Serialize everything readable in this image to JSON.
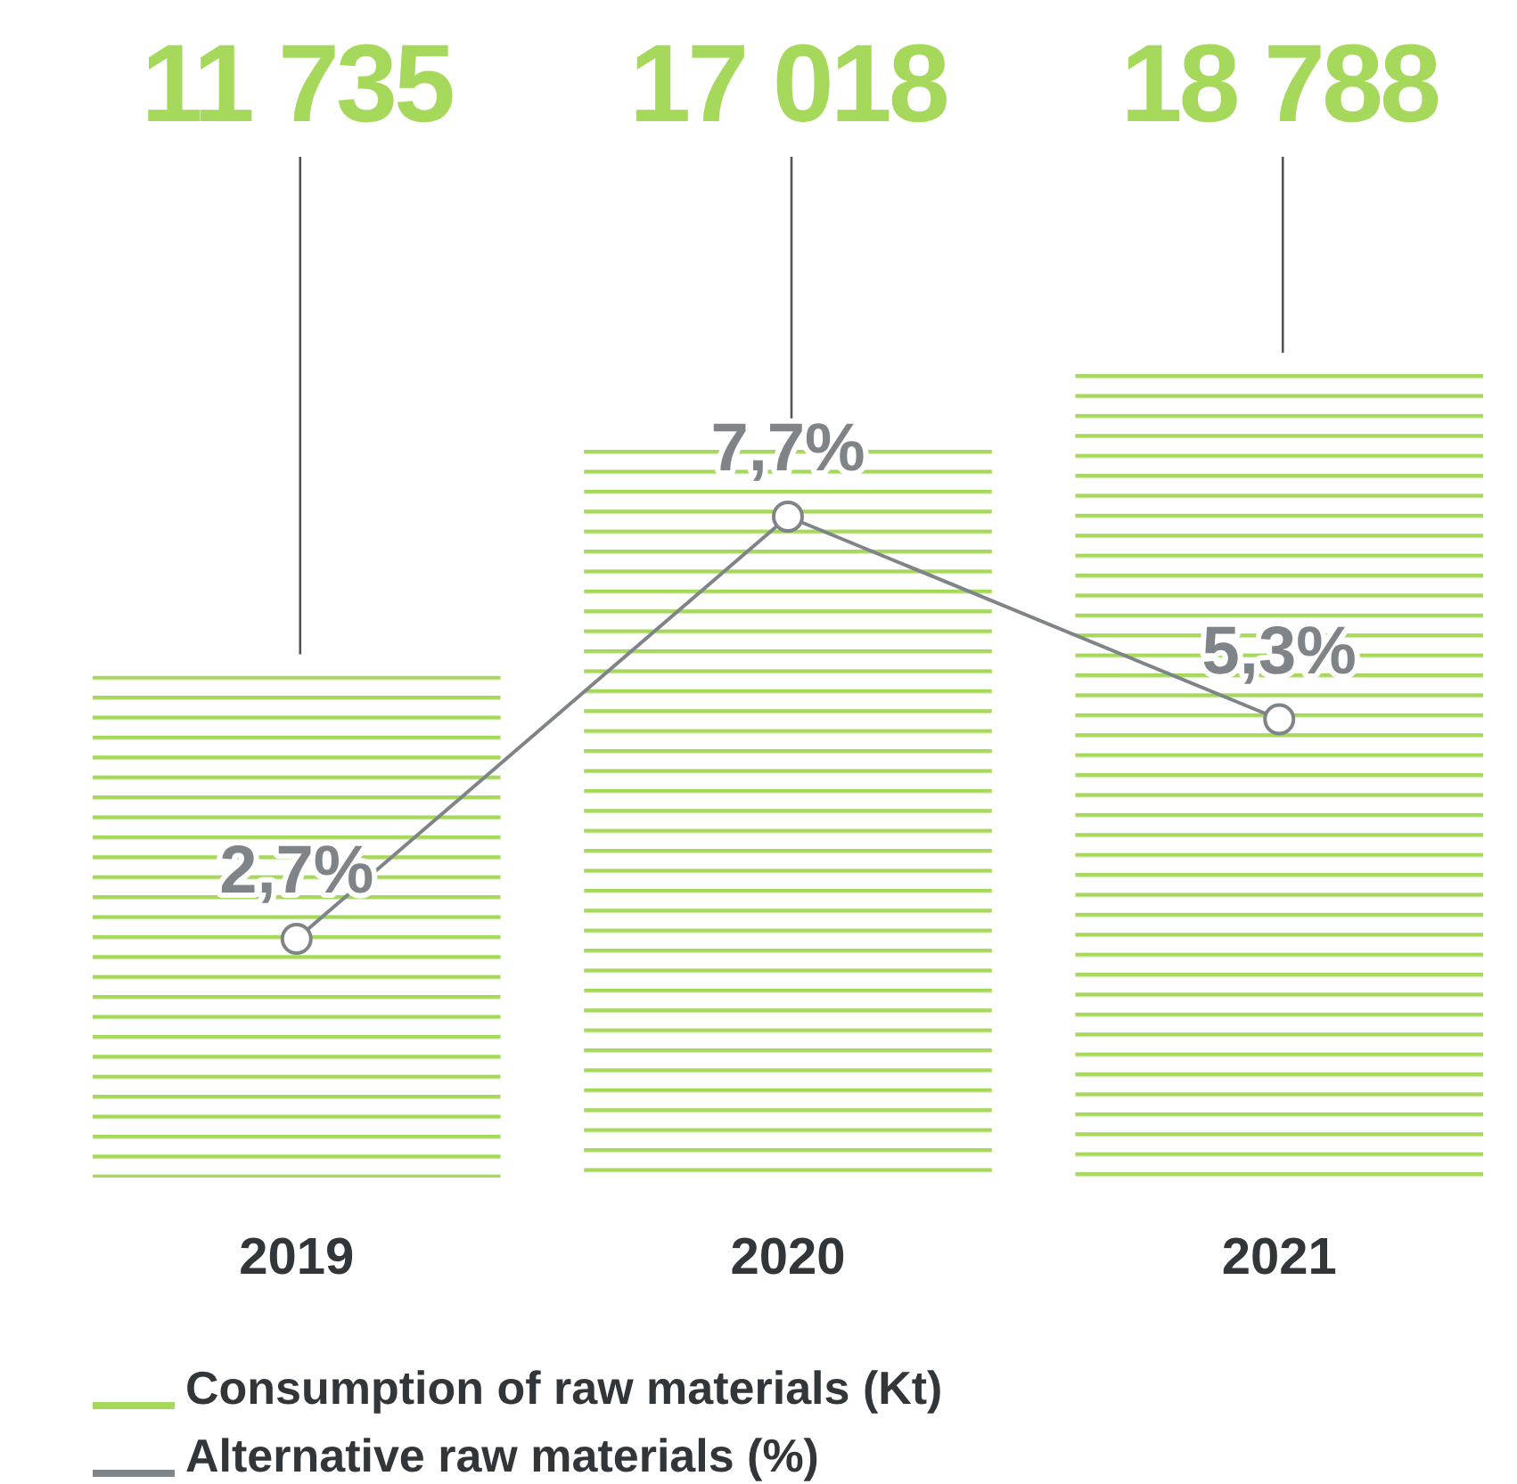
{
  "chart_data": {
    "type": "bar",
    "categories": [
      "2019",
      "2020",
      "2021"
    ],
    "series": [
      {
        "name": "Consumption of raw materials (Kt)",
        "color": "#a6d95b",
        "values": [
          11735,
          17018,
          18788
        ],
        "value_labels": [
          "11 735",
          "17 018",
          "18 788"
        ]
      },
      {
        "name": "Alternative raw materials (%)",
        "type": "line",
        "axis": "y2",
        "color": "#7f8488",
        "values": [
          2.7,
          7.7,
          5.3
        ],
        "value_labels": [
          "2,7%",
          "7,7%",
          "5,3%"
        ],
        "marker": "circle"
      }
    ],
    "legend": "bottom left"
  }
}
